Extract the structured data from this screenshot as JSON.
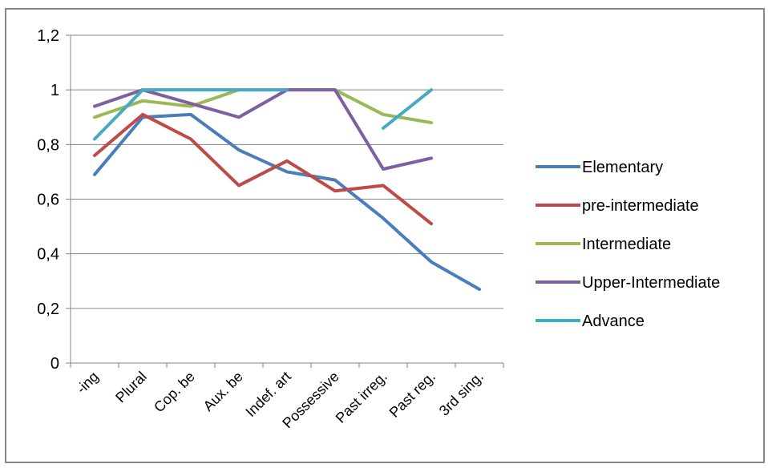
{
  "chart_data": {
    "type": "line",
    "title": "",
    "xlabel": "",
    "ylabel": "",
    "categories": [
      "-ing",
      "Plural",
      "Cop. be",
      "Aux. be",
      "Indef. art",
      "Possessive",
      "Past irreg.",
      "Past reg.",
      "3rd sing."
    ],
    "ylim": [
      0,
      1.2
    ],
    "yticks": [
      0,
      0.2,
      0.4,
      0.6,
      0.8,
      1,
      1.2
    ],
    "ytick_labels": [
      "0",
      "0,2",
      "0,4",
      "0,6",
      "0,8",
      "1",
      "1,2"
    ],
    "grid": "horizontal",
    "legend_position": "right",
    "series": [
      {
        "name": "Elementary",
        "color": "#4a7ebb",
        "values": [
          0.69,
          0.9,
          0.91,
          0.78,
          0.7,
          0.67,
          0.53,
          0.37,
          0.27
        ]
      },
      {
        "name": "pre-intermediate",
        "color": "#be4b48",
        "values": [
          0.76,
          0.91,
          0.82,
          0.65,
          0.74,
          0.63,
          0.65,
          0.51,
          null
        ]
      },
      {
        "name": "Intermediate",
        "color": "#98b954",
        "values": [
          0.9,
          0.96,
          0.94,
          1.0,
          1.0,
          1.0,
          0.91,
          0.88,
          null
        ]
      },
      {
        "name": "Upper-Intermediate",
        "color": "#7d60a0",
        "values": [
          0.94,
          1.0,
          0.95,
          0.9,
          1.0,
          1.0,
          0.71,
          0.75,
          null
        ]
      },
      {
        "name": "Advance",
        "color": "#46aac5",
        "values": [
          0.82,
          1.0,
          1.0,
          1.0,
          1.0,
          null,
          0.86,
          1.0,
          null
        ]
      }
    ]
  }
}
